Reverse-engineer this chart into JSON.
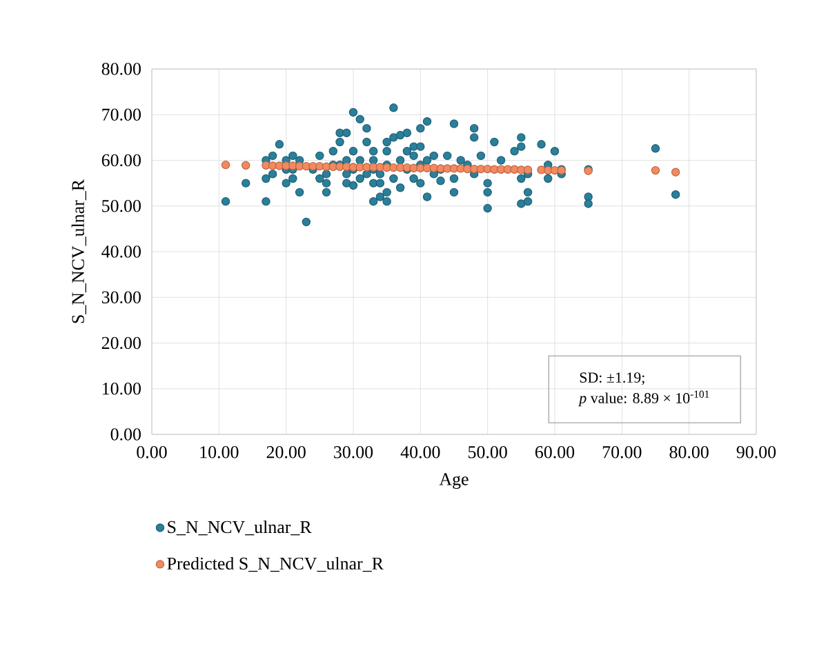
{
  "chart_data": {
    "type": "scatter",
    "xlabel": "Age",
    "ylabel": "S_N_NCV_ulnar_R",
    "xlim": [
      0,
      90
    ],
    "ylim": [
      0,
      80
    ],
    "xticks": [
      {
        "value": 0,
        "label": "0.00"
      },
      {
        "value": 10,
        "label": "10.00"
      },
      {
        "value": 20,
        "label": "20.00"
      },
      {
        "value": 30,
        "label": "30.00"
      },
      {
        "value": 40,
        "label": "40.00"
      },
      {
        "value": 50,
        "label": "50.00"
      },
      {
        "value": 60,
        "label": "60.00"
      },
      {
        "value": 70,
        "label": "70.00"
      },
      {
        "value": 80,
        "label": "80.00"
      },
      {
        "value": 90,
        "label": "90.00"
      }
    ],
    "yticks": [
      {
        "value": 0,
        "label": "0.00"
      },
      {
        "value": 10,
        "label": "10.00"
      },
      {
        "value": 20,
        "label": "20.00"
      },
      {
        "value": 30,
        "label": "30.00"
      },
      {
        "value": 40,
        "label": "40.00"
      },
      {
        "value": 50,
        "label": "50.00"
      },
      {
        "value": 60,
        "label": "60.00"
      },
      {
        "value": 70,
        "label": "70.00"
      },
      {
        "value": 80,
        "label": "80.00"
      }
    ],
    "grid": true,
    "legend": "bottom",
    "marker": "circle",
    "series": [
      {
        "name": "S_N_NCV_ulnar_R",
        "color": "#2a7f9a",
        "x": [
          11,
          14,
          17,
          17,
          17,
          18,
          18,
          19,
          20,
          20,
          20,
          21,
          21,
          21,
          22,
          22,
          23,
          24,
          25,
          25,
          26,
          26,
          26,
          27,
          27,
          28,
          28,
          28,
          29,
          29,
          29,
          29,
          30,
          30,
          30,
          30,
          31,
          31,
          31,
          32,
          32,
          32,
          33,
          33,
          33,
          33,
          33,
          34,
          34,
          34,
          35,
          35,
          35,
          35,
          35,
          36,
          36,
          36,
          37,
          37,
          37,
          38,
          38,
          38,
          39,
          39,
          39,
          40,
          40,
          40,
          40,
          41,
          41,
          41,
          42,
          42,
          43,
          43,
          44,
          45,
          45,
          45,
          46,
          47,
          48,
          48,
          48,
          49,
          50,
          50,
          50,
          51,
          52,
          53,
          54,
          55,
          55,
          55,
          55,
          56,
          56,
          56,
          58,
          59,
          59,
          60,
          61,
          61,
          65,
          65,
          65,
          75,
          78
        ],
        "values": [
          51,
          55,
          51,
          56,
          60,
          57,
          61,
          63.5,
          55,
          58,
          60,
          56,
          58,
          61,
          60,
          53,
          46.5,
          58,
          61,
          56,
          53,
          55,
          57,
          59,
          62,
          59,
          64,
          66,
          66,
          60,
          55,
          57,
          54.5,
          70.5,
          62,
          58,
          69,
          56,
          60,
          57,
          64,
          67,
          51,
          55,
          58,
          60,
          62,
          52,
          55,
          57,
          51,
          53,
          59,
          62,
          64,
          71.5,
          65,
          56,
          60,
          65.5,
          54,
          62,
          58,
          66,
          63,
          61,
          56,
          67,
          63,
          59,
          55,
          68.5,
          60,
          52,
          57,
          61,
          58,
          55.5,
          61,
          56,
          68,
          53,
          60,
          59,
          67,
          65,
          57,
          61,
          49.5,
          53,
          55,
          64,
          60,
          null,
          62,
          65,
          63,
          56,
          50.5,
          51,
          53,
          57,
          63.5,
          56,
          59,
          62,
          58,
          57,
          58,
          52,
          50.5,
          62.6,
          52.5
        ]
      },
      {
        "name": "Predicted S_N_NCV_ulnar_R",
        "color": "#f4895f",
        "x": [
          11,
          14,
          17,
          18,
          19,
          20,
          21,
          22,
          23,
          24,
          25,
          26,
          27,
          28,
          29,
          30,
          31,
          32,
          33,
          34,
          35,
          36,
          37,
          38,
          39,
          40,
          41,
          42,
          43,
          44,
          45,
          46,
          47,
          48,
          49,
          50,
          51,
          52,
          53,
          54,
          55,
          56,
          58,
          59,
          60,
          61,
          65,
          75,
          78
        ],
        "values": [
          59.0,
          58.9,
          58.9,
          58.8,
          58.8,
          58.8,
          58.8,
          58.7,
          58.7,
          58.7,
          58.7,
          58.6,
          58.6,
          58.6,
          58.6,
          58.5,
          58.5,
          58.5,
          58.5,
          58.5,
          58.4,
          58.4,
          58.4,
          58.4,
          58.3,
          58.3,
          58.3,
          58.3,
          58.2,
          58.2,
          58.2,
          58.2,
          58.1,
          58.1,
          58.1,
          58.1,
          58.0,
          58.0,
          58.0,
          58.0,
          57.9,
          57.9,
          57.9,
          57.8,
          57.8,
          57.8,
          57.7,
          57.8,
          57.4
        ]
      }
    ],
    "annotations": [
      "SD: ±1.19;",
      "*p* value: 8.89 × 10$^{-101}$"
    ]
  }
}
